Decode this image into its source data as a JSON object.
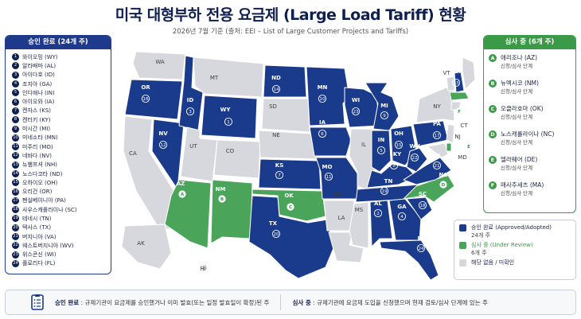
{
  "header": {
    "title": "미국 대형부하 전용 요금제 (Large Load Tariff) 현황",
    "subtitle": "2026년 7월 기준 (출처: EEI – List of Large Customer Projects and Tariffs)"
  },
  "approved_panel": {
    "title": "승인 완료 (24개 주)",
    "items": [
      {
        "num": "1",
        "label": "와이오밍 (WY)"
      },
      {
        "num": "2",
        "label": "알라배마 (AL)"
      },
      {
        "num": "3",
        "label": "아이다호 (ID)"
      },
      {
        "num": "4",
        "label": "조지아 (GA)"
      },
      {
        "num": "5",
        "label": "인디애나 (IN)"
      },
      {
        "num": "6",
        "label": "아이오와 (IA)"
      },
      {
        "num": "7",
        "label": "켄자스 (KS)"
      },
      {
        "num": "8",
        "label": "켄터키 (KY)"
      },
      {
        "num": "9",
        "label": "미시간 (MI)"
      },
      {
        "num": "10",
        "label": "미네소타 (MN)"
      },
      {
        "num": "11",
        "label": "미주리 (MO)"
      },
      {
        "num": "12",
        "label": "네바다 (NV)"
      },
      {
        "num": "13",
        "label": "뉴햄프셔 (NH)"
      },
      {
        "num": "14",
        "label": "노스다코타 (ND)"
      },
      {
        "num": "15",
        "label": "오하이오 (OH)"
      },
      {
        "num": "16",
        "label": "오리건 (OR)"
      },
      {
        "num": "17",
        "label": "펜실베이니아 (PA)"
      },
      {
        "num": "18",
        "label": "사우스캐롤라이나 (SC)"
      },
      {
        "num": "19",
        "label": "테네시 (TN)"
      },
      {
        "num": "20",
        "label": "텍사스 (TX)"
      },
      {
        "num": "21",
        "label": "버지니아 (VA)"
      },
      {
        "num": "22",
        "label": "웨스트버지니아 (WV)"
      },
      {
        "num": "23",
        "label": "위스콘신 (WI)"
      },
      {
        "num": "24",
        "label": "플로리다 (FL)"
      }
    ]
  },
  "review_panel": {
    "title": "심사 중 (6개 주)",
    "items": [
      {
        "letter": "A",
        "name": "애리조나 (AZ)",
        "status": "신청/심사 단계"
      },
      {
        "letter": "B",
        "name": "뉴멕시코 (NM)",
        "status": "신청/심사 단계"
      },
      {
        "letter": "C",
        "name": "오클라호마 (OK)",
        "status": "신청/심사 단계"
      },
      {
        "letter": "D",
        "name": "노스캐롤라이나 (NC)",
        "status": "신청/심사 단계"
      },
      {
        "letter": "E",
        "name": "델라웨어 (DE)",
        "status": "신청/심사 단계"
      },
      {
        "letter": "F",
        "name": "매사추세츠 (MA)",
        "status": "신청/심사 단계"
      }
    ]
  },
  "legend": {
    "approved": {
      "label": "승인 완료 (Approved/Adopted)",
      "count": "24개 주",
      "color": "#1a3a8c"
    },
    "review": {
      "label": "심사 중 (Under Review)",
      "count": "6개 주",
      "color": "#4aa55a"
    },
    "none": {
      "label": "해당 없음 / 미확인",
      "color": "#d6d8de"
    }
  },
  "footer": {
    "approved_term": "승인 완료",
    "approved_desc": " : 규제기관이 요금제를 승인했거나 이미 발효(또는 일정 발효일이 확정)된 주",
    "review_term": "심사 중",
    "review_desc": " : 규제기관에 요금제 도입을 신청했으며 현재 검토/심사 단계에 있는 주",
    "icon": "document-icon"
  },
  "map": {
    "labels": {
      "WA": "WA",
      "OR": "OR",
      "CA": "CA",
      "NV": "NV",
      "ID": "ID",
      "MT": "MT",
      "WY": "WY",
      "UT": "UT",
      "AZ": "AZ",
      "CO": "CO",
      "NM": "NM",
      "ND": "ND",
      "SD": "SD",
      "NE": "NE",
      "KS": "KS",
      "OK": "OK",
      "TX": "TX",
      "MN": "MN",
      "IA": "IA",
      "MO": "MO",
      "AR": "AR",
      "LA": "LA",
      "WI": "WI",
      "IL": "IL",
      "MI": "MI",
      "IN": "IN",
      "OH": "OH",
      "KY": "KY",
      "TN": "TN",
      "MS": "MS",
      "AL": "AL",
      "GA": "GA",
      "FL": "FL",
      "SC": "SC",
      "NC": "NC",
      "VA": "VA",
      "WV": "WV",
      "PA": "PA",
      "NY": "NY",
      "VT": "VT",
      "NH": "NH",
      "MA": "MA",
      "CT": "CT",
      "NJ": "NJ",
      "DE": "DE",
      "MD": "MD",
      "AK": "AK",
      "HI": "HI"
    },
    "markers": {
      "WY": "1",
      "AL": "2",
      "ID": "3",
      "GA": "4",
      "IN": "5",
      "IA": "6",
      "KS": "7",
      "KY": "8",
      "MI": "9",
      "MN": "10",
      "MO": "11",
      "NV": "12",
      "NH": "13",
      "ND": "14",
      "OH": "15",
      "OR": "16",
      "PA": "17",
      "SC": "18",
      "TN": "19",
      "TX": "20",
      "VA": "21",
      "WV": "22",
      "WI": "23",
      "FL": "24",
      "AZ": "A",
      "NM": "B",
      "OK": "C",
      "NC": "D",
      "DE": "E",
      "MA": "F"
    }
  }
}
